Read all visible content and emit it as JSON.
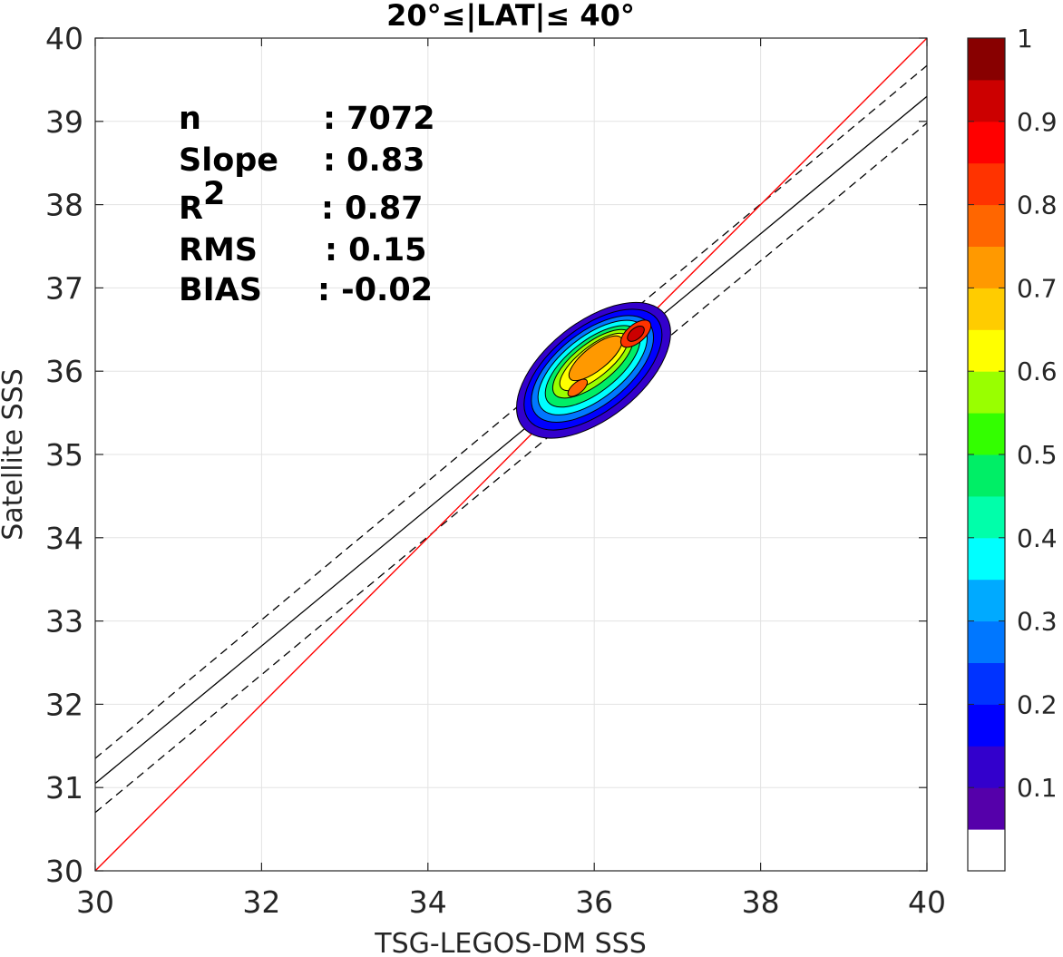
{
  "chart_data": {
    "type": "contour",
    "title": "20°≤|LAT|≤ 40°",
    "xlabel": "TSG-LEGOS-DM SSS",
    "ylabel": "Satellite SSS",
    "xlim": [
      30,
      40
    ],
    "ylim": [
      30,
      40
    ],
    "xticks": [
      "30",
      "32",
      "34",
      "36",
      "38",
      "40"
    ],
    "yticks": [
      "30",
      "31",
      "32",
      "33",
      "34",
      "35",
      "36",
      "37",
      "38",
      "39",
      "40"
    ],
    "grid": true,
    "stats": [
      {
        "label": "n",
        "value": ": 7072"
      },
      {
        "label": "Slope",
        "value": ": 0.83"
      },
      {
        "label": "R",
        "sup": "2",
        "value": ": 0.87"
      },
      {
        "label": "RMS",
        "value": ": 0.15"
      },
      {
        "label": "BIAS",
        "value": ": -0.02"
      }
    ],
    "lines": {
      "identity": {
        "x": [
          30,
          40
        ],
        "y": [
          30,
          40
        ],
        "color": "#ff0000"
      },
      "fit": {
        "x": [
          30,
          40
        ],
        "y": [
          31.05,
          39.3
        ],
        "color": "#000000"
      },
      "fit_upper": {
        "x": [
          30,
          40
        ],
        "y": [
          31.35,
          39.67
        ],
        "color": "#000000"
      },
      "fit_lower": {
        "x": [
          30,
          40
        ],
        "y": [
          30.7,
          38.98
        ],
        "color": "#000000"
      }
    },
    "density": {
      "peak_main": {
        "x": 36.5,
        "y": 36.45,
        "level": 1.0
      },
      "peak_secondary": {
        "x": 35.8,
        "y": 35.8,
        "level": 0.85
      },
      "outer_extent": {
        "x": [
          35.15,
          36.95
        ],
        "y": [
          35.15,
          36.9
        ]
      }
    },
    "colorbar": {
      "ticks": [
        "0.1",
        "0.2",
        "0.3",
        "0.4",
        "0.5",
        "0.6",
        "0.7",
        "0.8",
        "0.9",
        "1"
      ],
      "colors": [
        "#ffffff",
        "#5500aa",
        "#3300cc",
        "#0000ff",
        "#0033ff",
        "#0077ff",
        "#00aaff",
        "#00ffff",
        "#00ffaa",
        "#00ee66",
        "#33ff00",
        "#99ff00",
        "#ffff00",
        "#ffcc00",
        "#ff9900",
        "#ff6600",
        "#ff3300",
        "#ff0000",
        "#cc0000",
        "#880000"
      ]
    }
  }
}
